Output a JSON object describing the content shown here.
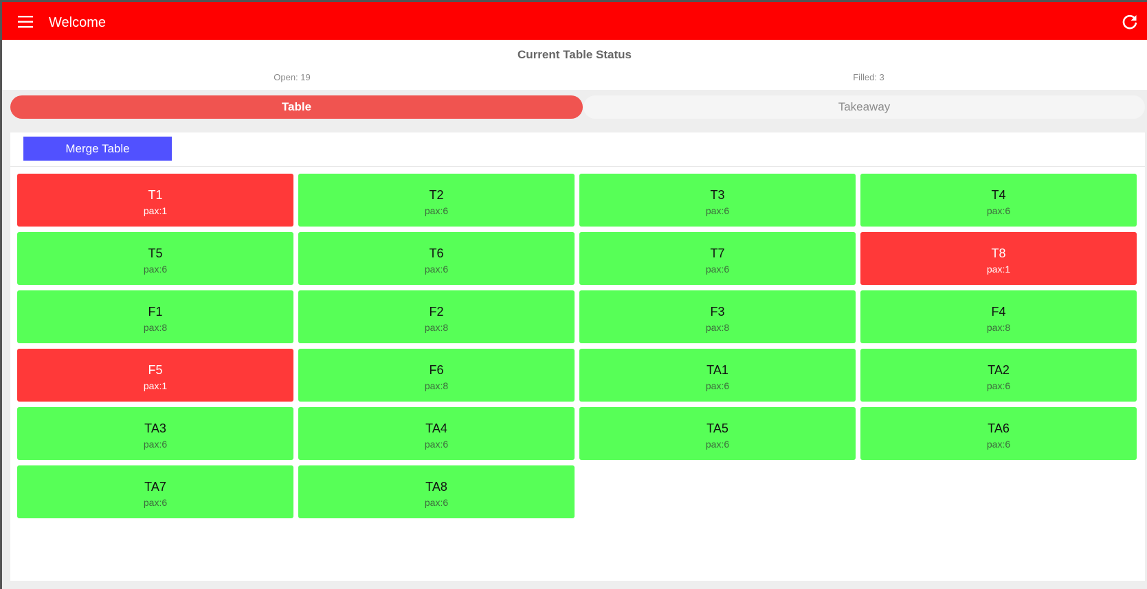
{
  "appbar": {
    "title": "Welcome",
    "menu_icon": "hamburger-menu-icon",
    "refresh_icon": "refresh-icon",
    "color": "#ff0000"
  },
  "status": {
    "title": "Current Table Status",
    "open": "Open: 19",
    "filled": "Filled: 3"
  },
  "tabs": [
    {
      "label": "Table",
      "active": true
    },
    {
      "label": "Takeaway",
      "active": false
    }
  ],
  "toolbar": {
    "merge_label": "Merge Table",
    "merge_color": "#5151ff"
  },
  "colors": {
    "open": "#57ff57",
    "filled": "#ff3939"
  },
  "tables": [
    {
      "name": "T1",
      "pax": "pax:1",
      "state": "filled"
    },
    {
      "name": "T2",
      "pax": "pax:6",
      "state": "open"
    },
    {
      "name": "T3",
      "pax": "pax:6",
      "state": "open"
    },
    {
      "name": "T4",
      "pax": "pax:6",
      "state": "open"
    },
    {
      "name": "T5",
      "pax": "pax:6",
      "state": "open"
    },
    {
      "name": "T6",
      "pax": "pax:6",
      "state": "open"
    },
    {
      "name": "T7",
      "pax": "pax:6",
      "state": "open"
    },
    {
      "name": "T8",
      "pax": "pax:1",
      "state": "filled"
    },
    {
      "name": "F1",
      "pax": "pax:8",
      "state": "open"
    },
    {
      "name": "F2",
      "pax": "pax:8",
      "state": "open"
    },
    {
      "name": "F3",
      "pax": "pax:8",
      "state": "open"
    },
    {
      "name": "F4",
      "pax": "pax:8",
      "state": "open"
    },
    {
      "name": "F5",
      "pax": "pax:1",
      "state": "filled"
    },
    {
      "name": "F6",
      "pax": "pax:8",
      "state": "open"
    },
    {
      "name": "TA1",
      "pax": "pax:6",
      "state": "open"
    },
    {
      "name": "TA2",
      "pax": "pax:6",
      "state": "open"
    },
    {
      "name": "TA3",
      "pax": "pax:6",
      "state": "open"
    },
    {
      "name": "TA4",
      "pax": "pax:6",
      "state": "open"
    },
    {
      "name": "TA5",
      "pax": "pax:6",
      "state": "open"
    },
    {
      "name": "TA6",
      "pax": "pax:6",
      "state": "open"
    },
    {
      "name": "TA7",
      "pax": "pax:6",
      "state": "open"
    },
    {
      "name": "TA8",
      "pax": "pax:6",
      "state": "open"
    }
  ]
}
